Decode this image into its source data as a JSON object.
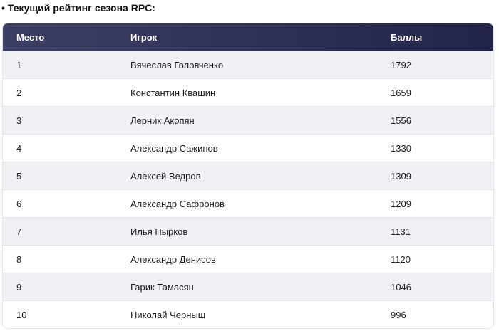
{
  "heading": {
    "bullet": "•",
    "text": "Текущий рейтинг сезона RPC:"
  },
  "table": {
    "columns": [
      "Место",
      "Игрок",
      "Баллы"
    ],
    "rows": [
      {
        "place": "1",
        "player": "Вячеслав Головченко",
        "points": "1792"
      },
      {
        "place": "2",
        "player": "Константин Квашин",
        "points": "1659"
      },
      {
        "place": "3",
        "player": "Лерник Акопян",
        "points": "1556"
      },
      {
        "place": "4",
        "player": "Александр Сажинов",
        "points": "1330"
      },
      {
        "place": "5",
        "player": "Алексей Ведров",
        "points": "1309"
      },
      {
        "place": "6",
        "player": "Александр Сафронов",
        "points": "1209"
      },
      {
        "place": "7",
        "player": "Илья Пырков",
        "points": "1131"
      },
      {
        "place": "8",
        "player": "Александр Денисов",
        "points": "1120"
      },
      {
        "place": "9",
        "player": "Гарик Тамасян",
        "points": "1046"
      },
      {
        "place": "10",
        "player": "Николай Черныш",
        "points": "996"
      }
    ]
  }
}
